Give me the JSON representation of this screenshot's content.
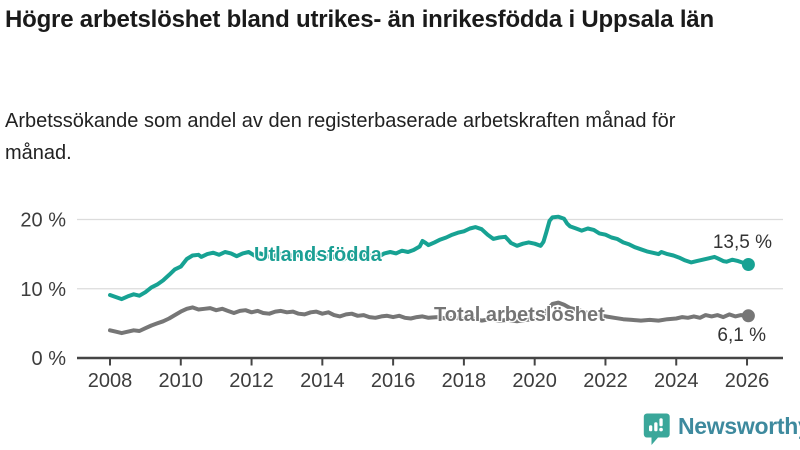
{
  "header": {
    "title": "Högre arbetslöshet bland utrikes- än inrikesfödda i Uppsala län",
    "subtitle": "Arbetssökande som andel av den registerbaserade arbetskraften månad för månad."
  },
  "footer": {
    "brand": "Newsworthy",
    "brand_icon": "newsworthy-speech-bubble-bar-chart-icon"
  },
  "colors": {
    "accent_teal": "#17a293",
    "series_gray": "#767676",
    "gridline": "#dcdcdc",
    "axis_line": "#454545",
    "axis_text": "#3d3d3d",
    "title_text": "#1a1a1a",
    "brand_text": "#3e8a9e",
    "brand_icon_fill": "#3aa79a"
  },
  "chart_data": {
    "type": "line",
    "title": "Högre arbetslöshet bland utrikes- än inrikesfödda i Uppsala län",
    "subtitle": "Arbetssökande som andel av den registerbaserade arbetskraften månad för månad.",
    "unit": "%",
    "grid": "horizontal-only",
    "legend_position": "inline-labels-on-lines",
    "x_axis": {
      "ticks": [
        2008,
        2010,
        2012,
        2014,
        2016,
        2018,
        2020,
        2022,
        2024,
        2026
      ]
    },
    "y_axis": {
      "ticks": [
        {
          "value": 0,
          "label": "0 %"
        },
        {
          "value": 10,
          "label": "10 %"
        },
        {
          "value": 20,
          "label": "20 %"
        }
      ],
      "range": [
        0,
        22
      ]
    },
    "series": [
      {
        "name": "Utlandsfödda",
        "color": "#17a293",
        "end_label": "13,5 %",
        "end_value": 13.5,
        "points": [
          [
            2008.0,
            9.1
          ],
          [
            2008.17,
            8.8
          ],
          [
            2008.33,
            8.5
          ],
          [
            2008.5,
            8.9
          ],
          [
            2008.67,
            9.2
          ],
          [
            2008.83,
            9.0
          ],
          [
            2009.0,
            9.5
          ],
          [
            2009.17,
            10.2
          ],
          [
            2009.33,
            10.6
          ],
          [
            2009.5,
            11.2
          ],
          [
            2009.67,
            12.0
          ],
          [
            2009.83,
            12.8
          ],
          [
            2010.0,
            13.2
          ],
          [
            2010.17,
            14.3
          ],
          [
            2010.33,
            14.8
          ],
          [
            2010.5,
            14.9
          ],
          [
            2010.58,
            14.6
          ],
          [
            2010.75,
            15.0
          ],
          [
            2010.92,
            15.2
          ],
          [
            2011.08,
            14.9
          ],
          [
            2011.25,
            15.3
          ],
          [
            2011.42,
            15.1
          ],
          [
            2011.58,
            14.7
          ],
          [
            2011.75,
            15.1
          ],
          [
            2011.92,
            15.3
          ],
          [
            2012.08,
            14.8
          ],
          [
            2012.25,
            15.1
          ],
          [
            2012.42,
            14.7
          ],
          [
            2012.58,
            14.6
          ],
          [
            2012.75,
            15.0
          ],
          [
            2012.92,
            15.1
          ],
          [
            2013.08,
            14.7
          ],
          [
            2013.25,
            15.0
          ],
          [
            2013.42,
            14.6
          ],
          [
            2013.58,
            14.5
          ],
          [
            2013.75,
            14.8
          ],
          [
            2013.92,
            14.9
          ],
          [
            2014.08,
            14.6
          ],
          [
            2014.25,
            14.8
          ],
          [
            2014.42,
            14.3
          ],
          [
            2014.58,
            14.2
          ],
          [
            2014.75,
            14.7
          ],
          [
            2014.92,
            14.9
          ],
          [
            2015.08,
            14.6
          ],
          [
            2015.25,
            15.0
          ],
          [
            2015.42,
            14.7
          ],
          [
            2015.58,
            14.6
          ],
          [
            2015.75,
            15.1
          ],
          [
            2015.92,
            15.3
          ],
          [
            2016.08,
            15.1
          ],
          [
            2016.25,
            15.5
          ],
          [
            2016.42,
            15.3
          ],
          [
            2016.58,
            15.6
          ],
          [
            2016.75,
            16.1
          ],
          [
            2016.83,
            16.9
          ],
          [
            2016.92,
            16.6
          ],
          [
            2017.0,
            16.3
          ],
          [
            2017.17,
            16.7
          ],
          [
            2017.33,
            17.1
          ],
          [
            2017.5,
            17.4
          ],
          [
            2017.67,
            17.8
          ],
          [
            2017.83,
            18.1
          ],
          [
            2018.0,
            18.3
          ],
          [
            2018.17,
            18.7
          ],
          [
            2018.33,
            18.9
          ],
          [
            2018.5,
            18.6
          ],
          [
            2018.67,
            17.8
          ],
          [
            2018.83,
            17.2
          ],
          [
            2019.0,
            17.4
          ],
          [
            2019.17,
            17.5
          ],
          [
            2019.33,
            16.6
          ],
          [
            2019.5,
            16.2
          ],
          [
            2019.67,
            16.5
          ],
          [
            2019.83,
            16.7
          ],
          [
            2020.0,
            16.5
          ],
          [
            2020.17,
            16.2
          ],
          [
            2020.25,
            16.8
          ],
          [
            2020.33,
            18.2
          ],
          [
            2020.42,
            19.8
          ],
          [
            2020.5,
            20.3
          ],
          [
            2020.67,
            20.4
          ],
          [
            2020.83,
            20.1
          ],
          [
            2020.92,
            19.4
          ],
          [
            2021.0,
            19.0
          ],
          [
            2021.17,
            18.7
          ],
          [
            2021.33,
            18.4
          ],
          [
            2021.5,
            18.7
          ],
          [
            2021.67,
            18.5
          ],
          [
            2021.83,
            18.0
          ],
          [
            2022.0,
            17.8
          ],
          [
            2022.17,
            17.4
          ],
          [
            2022.33,
            17.2
          ],
          [
            2022.5,
            16.7
          ],
          [
            2022.67,
            16.4
          ],
          [
            2022.83,
            16.0
          ],
          [
            2023.0,
            15.7
          ],
          [
            2023.17,
            15.4
          ],
          [
            2023.33,
            15.2
          ],
          [
            2023.5,
            15.0
          ],
          [
            2023.58,
            15.3
          ],
          [
            2023.75,
            15.0
          ],
          [
            2023.92,
            14.8
          ],
          [
            2024.08,
            14.5
          ],
          [
            2024.25,
            14.1
          ],
          [
            2024.42,
            13.8
          ],
          [
            2024.58,
            14.0
          ],
          [
            2024.75,
            14.2
          ],
          [
            2024.92,
            14.4
          ],
          [
            2025.08,
            14.6
          ],
          [
            2025.17,
            14.4
          ],
          [
            2025.33,
            14.0
          ],
          [
            2025.42,
            13.9
          ],
          [
            2025.58,
            14.2
          ],
          [
            2025.75,
            14.0
          ],
          [
            2025.92,
            13.7
          ],
          [
            2026.04,
            13.5
          ]
        ]
      },
      {
        "name": "Total arbetslöshet",
        "color": "#767676",
        "end_label": "6,1 %",
        "end_value": 6.1,
        "points": [
          [
            2008.0,
            4.0
          ],
          [
            2008.17,
            3.8
          ],
          [
            2008.33,
            3.6
          ],
          [
            2008.5,
            3.8
          ],
          [
            2008.67,
            4.0
          ],
          [
            2008.83,
            3.9
          ],
          [
            2009.0,
            4.3
          ],
          [
            2009.17,
            4.7
          ],
          [
            2009.33,
            5.0
          ],
          [
            2009.5,
            5.3
          ],
          [
            2009.67,
            5.7
          ],
          [
            2009.83,
            6.2
          ],
          [
            2010.0,
            6.7
          ],
          [
            2010.17,
            7.1
          ],
          [
            2010.33,
            7.3
          ],
          [
            2010.5,
            7.0
          ],
          [
            2010.67,
            7.1
          ],
          [
            2010.83,
            7.2
          ],
          [
            2011.0,
            6.9
          ],
          [
            2011.17,
            7.1
          ],
          [
            2011.33,
            6.8
          ],
          [
            2011.5,
            6.5
          ],
          [
            2011.67,
            6.8
          ],
          [
            2011.83,
            6.9
          ],
          [
            2012.0,
            6.6
          ],
          [
            2012.17,
            6.8
          ],
          [
            2012.33,
            6.5
          ],
          [
            2012.5,
            6.4
          ],
          [
            2012.67,
            6.7
          ],
          [
            2012.83,
            6.8
          ],
          [
            2013.0,
            6.6
          ],
          [
            2013.17,
            6.7
          ],
          [
            2013.33,
            6.4
          ],
          [
            2013.5,
            6.3
          ],
          [
            2013.67,
            6.6
          ],
          [
            2013.83,
            6.7
          ],
          [
            2014.0,
            6.4
          ],
          [
            2014.17,
            6.6
          ],
          [
            2014.33,
            6.2
          ],
          [
            2014.5,
            6.0
          ],
          [
            2014.67,
            6.3
          ],
          [
            2014.83,
            6.4
          ],
          [
            2015.0,
            6.1
          ],
          [
            2015.17,
            6.2
          ],
          [
            2015.33,
            5.9
          ],
          [
            2015.5,
            5.8
          ],
          [
            2015.67,
            6.0
          ],
          [
            2015.83,
            6.1
          ],
          [
            2016.0,
            5.9
          ],
          [
            2016.17,
            6.1
          ],
          [
            2016.33,
            5.8
          ],
          [
            2016.5,
            5.7
          ],
          [
            2016.67,
            5.9
          ],
          [
            2016.83,
            6.0
          ],
          [
            2017.0,
            5.8
          ],
          [
            2017.25,
            5.9
          ],
          [
            2017.5,
            5.7
          ],
          [
            2017.75,
            5.8
          ],
          [
            2018.0,
            5.6
          ],
          [
            2018.25,
            5.7
          ],
          [
            2018.5,
            5.4
          ],
          [
            2018.75,
            5.6
          ],
          [
            2019.0,
            5.4
          ],
          [
            2019.25,
            5.5
          ],
          [
            2019.5,
            5.3
          ],
          [
            2019.75,
            5.5
          ],
          [
            2020.0,
            5.6
          ],
          [
            2020.17,
            5.5
          ],
          [
            2020.33,
            6.8
          ],
          [
            2020.5,
            7.8
          ],
          [
            2020.67,
            8.0
          ],
          [
            2020.83,
            7.7
          ],
          [
            2021.0,
            7.2
          ],
          [
            2021.25,
            6.9
          ],
          [
            2021.5,
            6.5
          ],
          [
            2021.75,
            6.2
          ],
          [
            2022.0,
            6.0
          ],
          [
            2022.25,
            5.8
          ],
          [
            2022.5,
            5.6
          ],
          [
            2022.75,
            5.5
          ],
          [
            2023.0,
            5.4
          ],
          [
            2023.25,
            5.5
          ],
          [
            2023.5,
            5.4
          ],
          [
            2023.75,
            5.6
          ],
          [
            2024.0,
            5.7
          ],
          [
            2024.17,
            5.9
          ],
          [
            2024.33,
            5.8
          ],
          [
            2024.5,
            6.0
          ],
          [
            2024.67,
            5.8
          ],
          [
            2024.83,
            6.2
          ],
          [
            2025.0,
            6.0
          ],
          [
            2025.17,
            6.2
          ],
          [
            2025.33,
            5.9
          ],
          [
            2025.5,
            6.3
          ],
          [
            2025.67,
            6.0
          ],
          [
            2025.83,
            6.2
          ],
          [
            2026.04,
            6.1
          ]
        ]
      }
    ]
  }
}
